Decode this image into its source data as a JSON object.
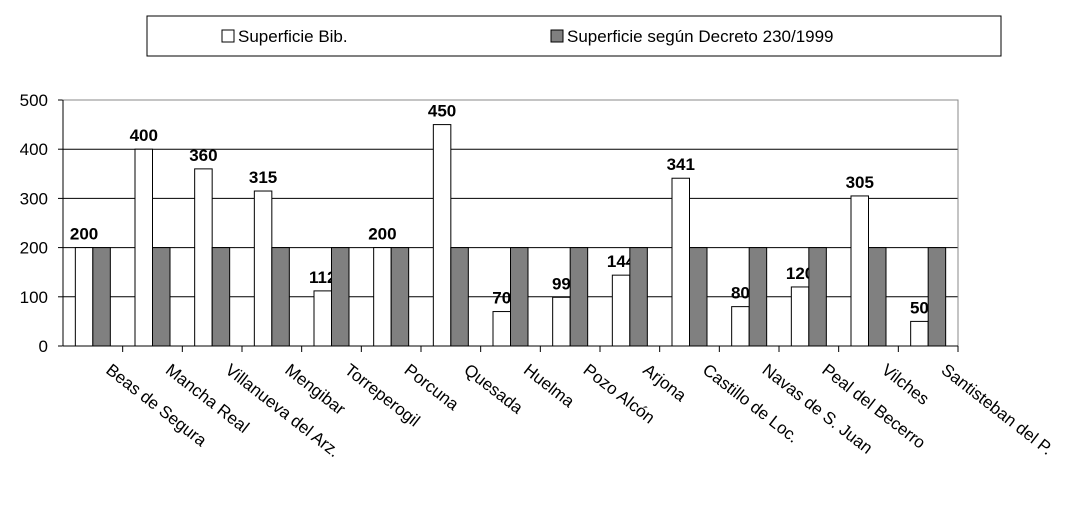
{
  "chart_data": {
    "type": "bar",
    "categories": [
      "Beas de Segura",
      "Mancha Real",
      "Villanueva del Arz.",
      "Mengibar",
      "Torreperogil",
      "Porcuna",
      "Quesada",
      "Huelma",
      "Pozo Alcón",
      "Arjona",
      "Castillo de Loc.",
      "Navas de S. Juan",
      "Peal del Becerro",
      "Vilches",
      "Santisteban del P."
    ],
    "series": [
      {
        "name": "Superficie Bib.",
        "color": "#ffffff",
        "values": [
          200,
          400,
          360,
          315,
          112,
          200,
          450,
          70,
          99,
          144,
          341,
          80,
          120,
          305,
          50
        ]
      },
      {
        "name": "Superficie según Decreto 230/1999",
        "color": "#808080",
        "values": [
          200,
          200,
          200,
          200,
          200,
          200,
          200,
          200,
          200,
          200,
          200,
          200,
          200,
          200,
          200
        ]
      }
    ],
    "ylim": [
      0,
      500
    ],
    "yticks": [
      0,
      100,
      200,
      300,
      400,
      500
    ],
    "grid": true,
    "legend": "top"
  }
}
